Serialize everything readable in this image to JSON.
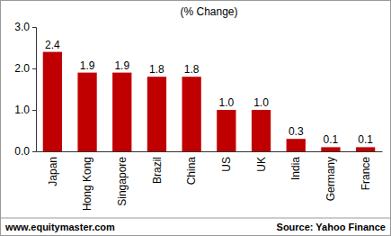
{
  "chart_data": {
    "type": "bar",
    "title": "(% Change)",
    "categories": [
      "Japan",
      "Hong Kong",
      "Singapore",
      "Brazil",
      "China",
      "US",
      "UK",
      "India",
      "Germany",
      "France"
    ],
    "values": [
      2.4,
      1.9,
      1.9,
      1.8,
      1.8,
      1.0,
      1.0,
      0.3,
      0.1,
      0.1
    ],
    "value_labels": [
      "2.4",
      "1.9",
      "1.9",
      "1.8",
      "1.8",
      "1.0",
      "1.0",
      "0.3",
      "0.1",
      "0.1"
    ],
    "color": "#c00000",
    "ylim": [
      0,
      3
    ],
    "yticks": [
      {
        "value": 0,
        "label": "0.0"
      },
      {
        "value": 1,
        "label": "1.0"
      },
      {
        "value": 2,
        "label": "2.0"
      },
      {
        "value": 3,
        "label": "3.0"
      }
    ],
    "grid": false,
    "data_labels": true,
    "annotations": [
      "www.equitymaster.com",
      "Source: Yahoo Finance"
    ]
  }
}
